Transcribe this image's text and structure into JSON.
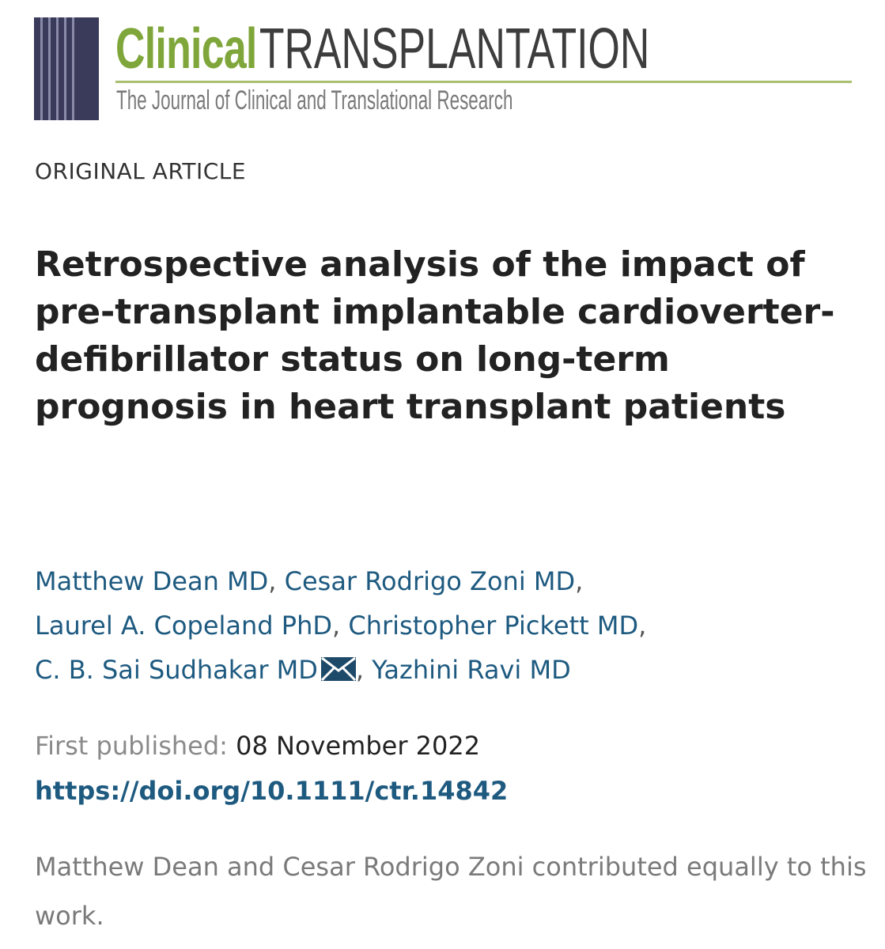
{
  "journal": {
    "name_part1": "Clinical",
    "name_part2": "TRANSPLANTATION",
    "tagline": "The Journal of Clinical and Translational Research"
  },
  "article": {
    "type": "ORIGINAL ARTICLE",
    "title": "Retrospective analysis of the impact of pre-transplant implantable cardioverter-defibrillator status on long-term prognosis in heart transplant patients",
    "authors": [
      "Matthew Dean MD",
      "Cesar Rodrigo Zoni MD",
      "Laurel A. Copeland PhD",
      "Christopher Pickett MD",
      "C. B. Sai Sudhakar MD",
      "Yazhini Ravi MD"
    ],
    "first_published_label": "First published:",
    "first_published_date": "08 November 2022",
    "doi": "https://doi.org/10.1111/ctr.14842",
    "contribution_note": "Matthew Dean and Cesar Rodrigo Zoni contributed equally to this work."
  },
  "icons": {
    "corresponding_author": "mail-icon"
  },
  "colors": {
    "journal_green": "#7fa63a",
    "link_blue": "#1e5a80",
    "logo_navy": "#3a3a5a"
  }
}
